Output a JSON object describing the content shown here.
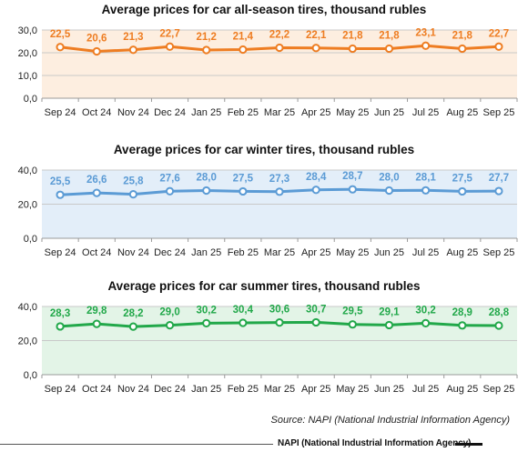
{
  "chart_data": [
    {
      "type": "line",
      "title": "Average prices for car all-season tires, thousand rubles",
      "categories": [
        "Sep 24",
        "Oct 24",
        "Nov 24",
        "Dec 24",
        "Jan 25",
        "Feb 25",
        "Mar 25",
        "Apr 25",
        "May 25",
        "Jun 25",
        "Jul 25",
        "Aug 25",
        "Sep 25"
      ],
      "values": [
        22.5,
        20.6,
        21.3,
        22.7,
        21.2,
        21.4,
        22.2,
        22.1,
        21.8,
        21.8,
        23.1,
        21.8,
        22.7
      ],
      "labels": [
        "22,5",
        "20,6",
        "21,3",
        "22,7",
        "21,2",
        "21,4",
        "22,2",
        "22,1",
        "21,8",
        "21,8",
        "23,1",
        "21,8",
        "22,7"
      ],
      "yticks": [
        "0,0",
        "10,0",
        "20,0",
        "30,0"
      ],
      "ylim": [
        0,
        30
      ],
      "color": "#ee7d22",
      "plot_bg": "#fdeee0",
      "grid": true
    },
    {
      "type": "line",
      "title": "Average prices for car winter tires, thousand rubles",
      "categories": [
        "Sep 24",
        "Oct 24",
        "Nov 24",
        "Dec 24",
        "Jan 25",
        "Feb 25",
        "Mar 25",
        "Apr 25",
        "May 25",
        "Jun 25",
        "Jul 25",
        "Aug 25",
        "Sep 25"
      ],
      "values": [
        25.5,
        26.6,
        25.8,
        27.6,
        28.0,
        27.5,
        27.3,
        28.4,
        28.7,
        28.0,
        28.1,
        27.5,
        27.7
      ],
      "labels": [
        "25,5",
        "26,6",
        "25,8",
        "27,6",
        "28,0",
        "27,5",
        "27,3",
        "28,4",
        "28,7",
        "28,0",
        "28,1",
        "27,5",
        "27,7"
      ],
      "yticks": [
        "0,0",
        "20,0",
        "40,0"
      ],
      "ylim": [
        0,
        40
      ],
      "color": "#5b9bd5",
      "plot_bg": "#e3eef9",
      "grid": true
    },
    {
      "type": "line",
      "title": "Average prices for car summer tires, thousand rubles",
      "categories": [
        "Sep 24",
        "Oct 24",
        "Nov 24",
        "Dec 24",
        "Jan 25",
        "Feb 25",
        "Mar 25",
        "Apr 25",
        "May 25",
        "Jun 25",
        "Jul 25",
        "Aug 25",
        "Sep 25"
      ],
      "values": [
        28.3,
        29.8,
        28.2,
        29.0,
        30.2,
        30.4,
        30.6,
        30.7,
        29.5,
        29.1,
        30.2,
        28.9,
        28.8
      ],
      "labels": [
        "28,3",
        "29,8",
        "28,2",
        "29,0",
        "30,2",
        "30,4",
        "30,6",
        "30,7",
        "29,5",
        "29,1",
        "30,2",
        "28,9",
        "28,8"
      ],
      "yticks": [
        "0,0",
        "20,0",
        "40,0"
      ],
      "ylim": [
        0,
        40
      ],
      "color": "#22a84a",
      "plot_bg": "#e3f4e7",
      "grid": true
    }
  ],
  "source": "Source: NAPI (National Industrial Information Agency)",
  "footer": {
    "brand": "NAPI (National Industrial Information Agency)"
  }
}
